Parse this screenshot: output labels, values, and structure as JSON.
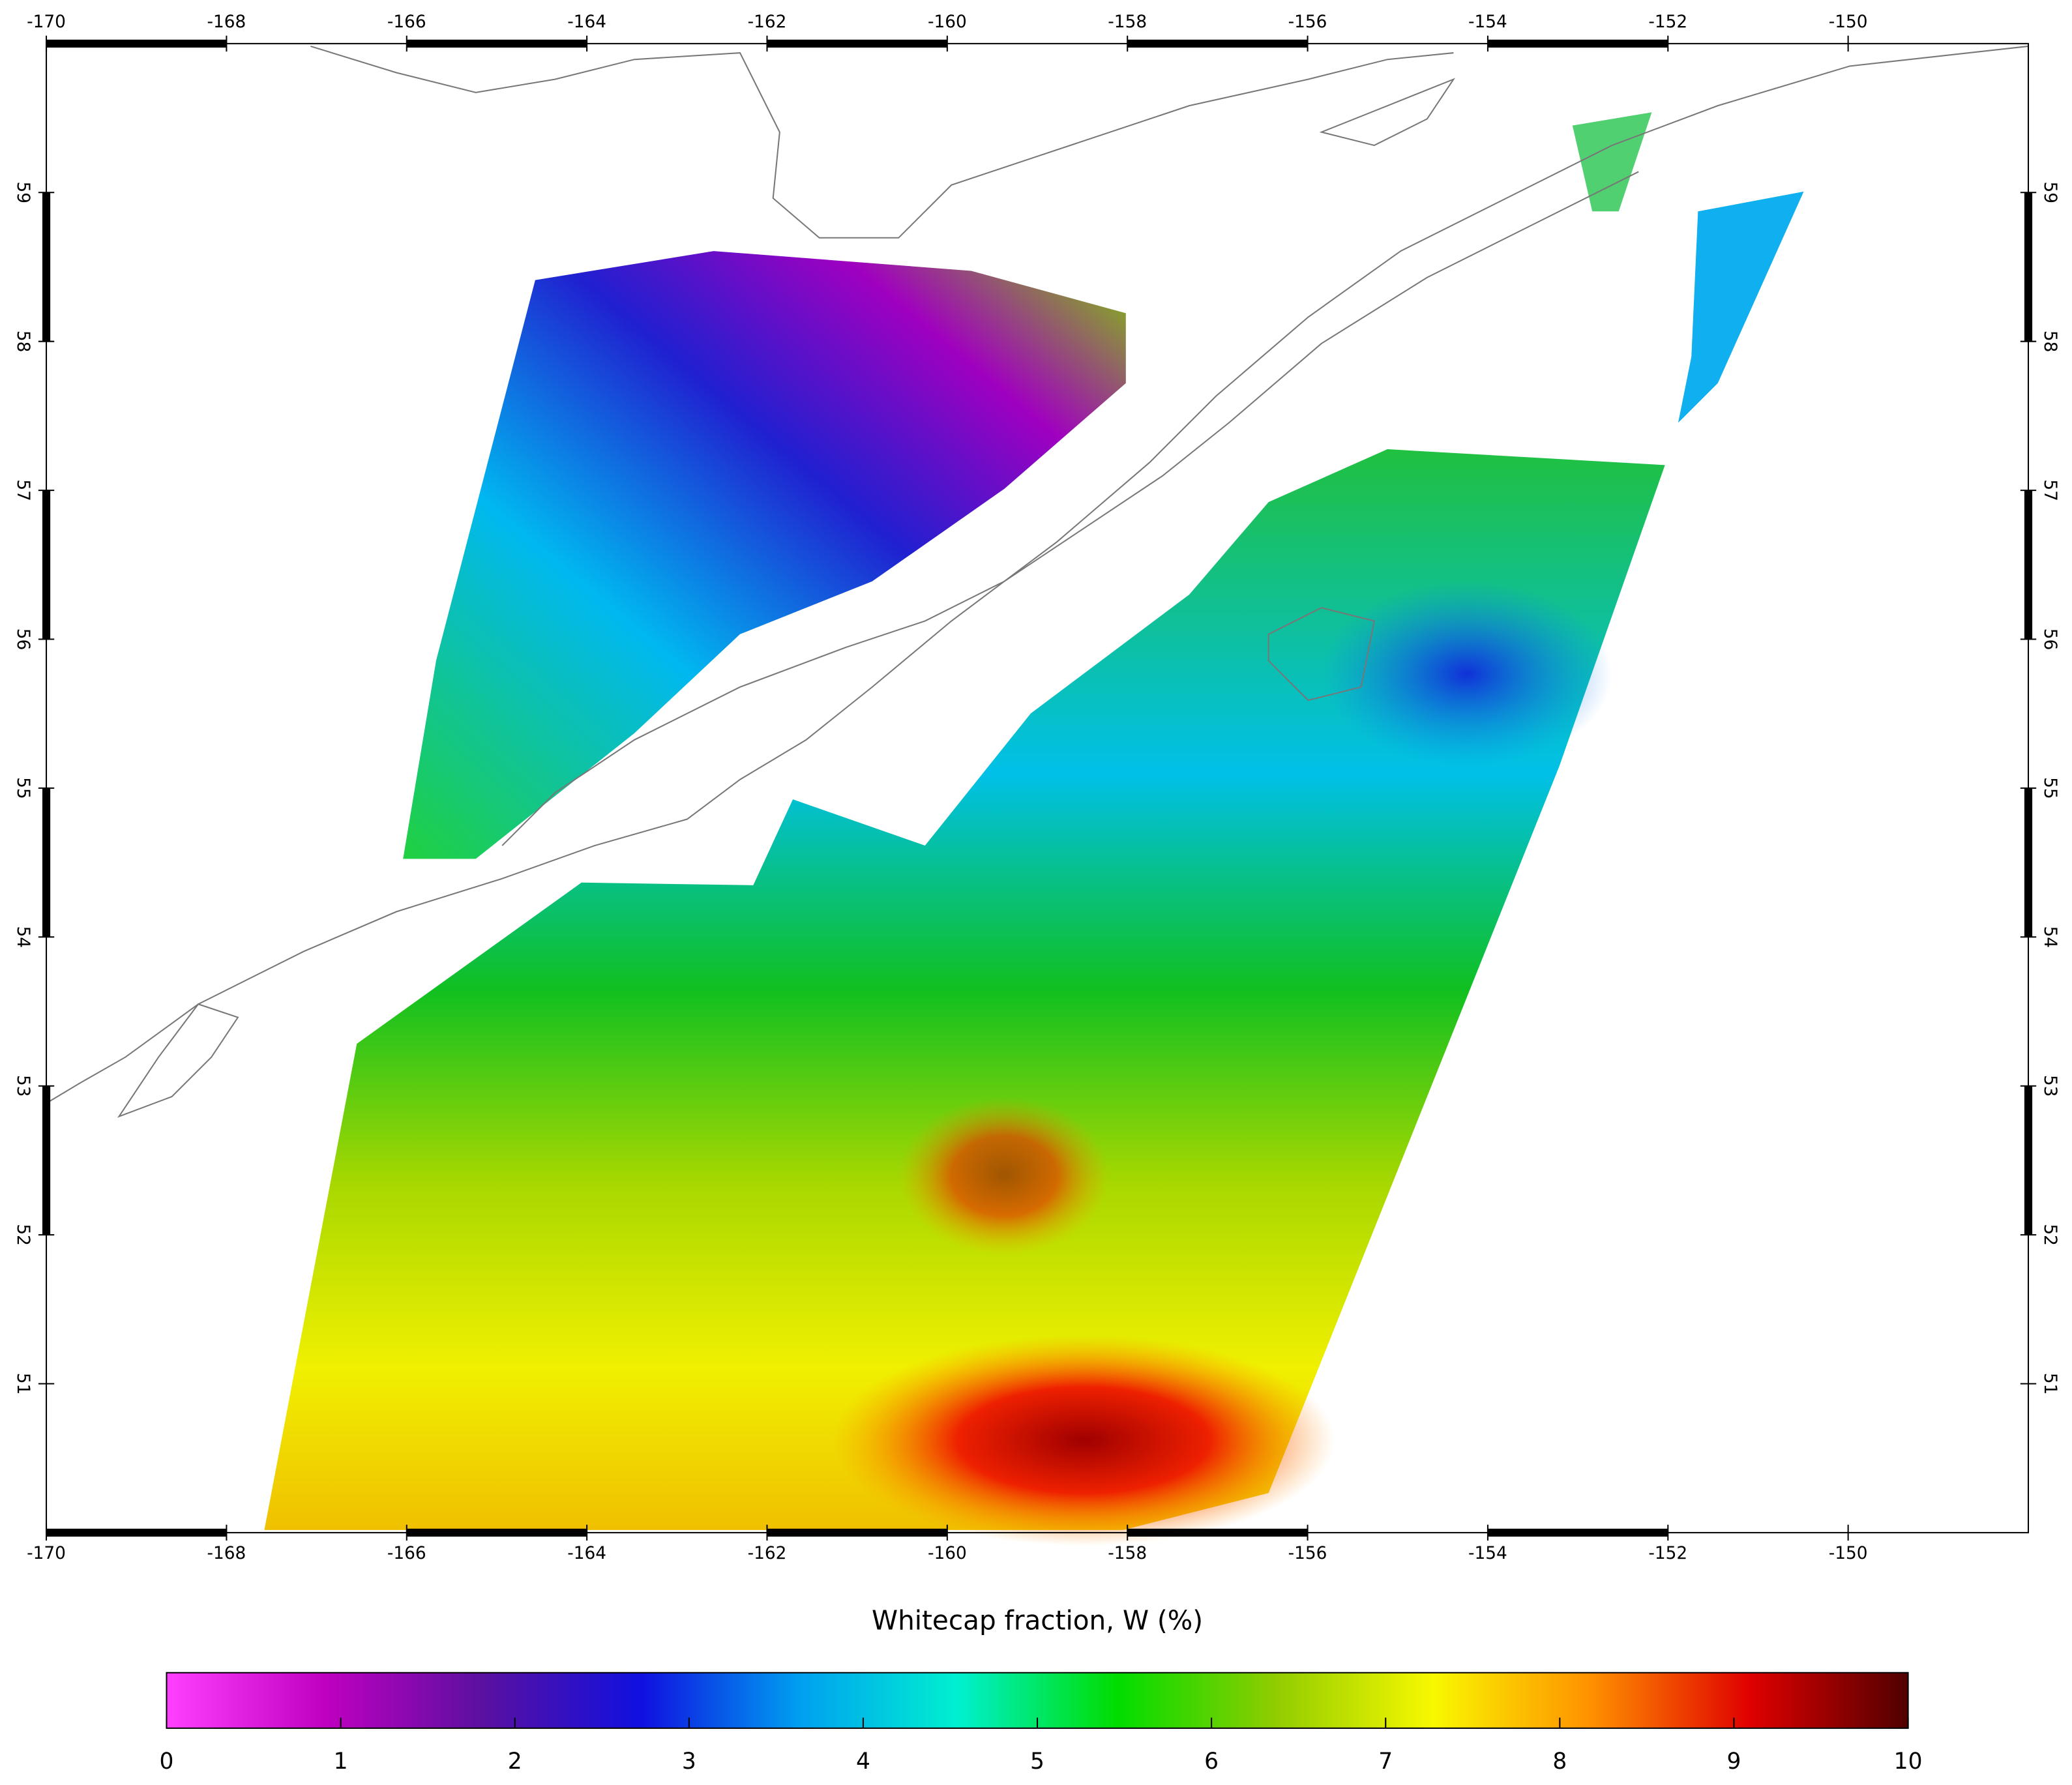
{
  "map": {
    "xlim": [
      -170,
      -148
    ],
    "ylim": [
      50,
      60
    ],
    "xticks": [
      -170,
      -168,
      -166,
      -164,
      -162,
      -160,
      -158,
      -156,
      -154,
      -152,
      -150
    ],
    "yticks": [
      51,
      52,
      53,
      54,
      55,
      56,
      57,
      58,
      59
    ],
    "colorbar": {
      "title": "Whitecap fraction, W (%)",
      "range": [
        0,
        10
      ],
      "ticks": [
        0,
        1,
        2,
        3,
        4,
        5,
        6,
        7,
        8,
        9,
        10
      ],
      "colors": [
        "#ff40ff",
        "#c000c0",
        "#5a10a0",
        "#1010e0",
        "#00a0f0",
        "#00f0d0",
        "#00dd00",
        "#90cc00",
        "#f8f800",
        "#ff9000",
        "#e00000",
        "#500000"
      ]
    }
  }
}
